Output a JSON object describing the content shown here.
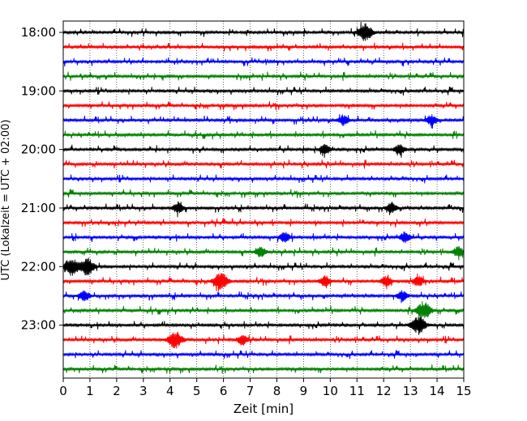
{
  "chart_data": {
    "type": "line",
    "title": "",
    "xlabel": "Zeit  [min]",
    "ylabel": "UTC (Lokalzeit = UTC + 02:00)",
    "xlim": [
      0,
      15
    ],
    "x_ticks": [
      "0",
      "1",
      "2",
      "3",
      "4",
      "5",
      "6",
      "7",
      "8",
      "9",
      "10",
      "11",
      "12",
      "13",
      "14",
      "15"
    ],
    "y_tick_labels": [
      "18:00",
      "19:00",
      "20:00",
      "21:00",
      "22:00",
      "23:00"
    ],
    "grid": "vertical dotted",
    "trace_colors": [
      "#000000",
      "#ff0000",
      "#0000ff",
      "#008000"
    ],
    "traces": [
      {
        "time": "18:00",
        "color": "#000000",
        "events": [
          [
            11.3,
            0.8,
            "high"
          ]
        ]
      },
      {
        "time": "18:15",
        "color": "#ff0000",
        "events": []
      },
      {
        "time": "18:30",
        "color": "#0000ff",
        "events": []
      },
      {
        "time": "18:45",
        "color": "#008000",
        "events": []
      },
      {
        "time": "19:00",
        "color": "#000000",
        "events": []
      },
      {
        "time": "19:15",
        "color": "#ff0000",
        "events": []
      },
      {
        "time": "19:30",
        "color": "#0000ff",
        "events": [
          [
            10.5,
            0.6,
            "medium"
          ],
          [
            13.8,
            0.6,
            "medium"
          ]
        ]
      },
      {
        "time": "19:45",
        "color": "#008000",
        "events": []
      },
      {
        "time": "20:00",
        "color": "#000000",
        "events": [
          [
            9.8,
            0.5,
            "medium"
          ],
          [
            12.6,
            0.5,
            "medium"
          ]
        ]
      },
      {
        "time": "20:15",
        "color": "#ff0000",
        "events": []
      },
      {
        "time": "20:30",
        "color": "#0000ff",
        "events": []
      },
      {
        "time": "20:45",
        "color": "#008000",
        "events": []
      },
      {
        "time": "21:00",
        "color": "#000000",
        "events": [
          [
            4.3,
            0.5,
            "medium"
          ],
          [
            12.3,
            0.5,
            "medium"
          ]
        ]
      },
      {
        "time": "21:15",
        "color": "#ff0000",
        "events": []
      },
      {
        "time": "21:30",
        "color": "#0000ff",
        "events": [
          [
            8.3,
            0.5,
            "medium"
          ],
          [
            12.8,
            0.5,
            "medium"
          ]
        ]
      },
      {
        "time": "21:45",
        "color": "#008000",
        "events": [
          [
            7.4,
            0.6,
            "medium"
          ],
          [
            14.8,
            0.6,
            "medium"
          ]
        ]
      },
      {
        "time": "22:00",
        "color": "#000000",
        "events": [
          [
            0.3,
            1.0,
            "high"
          ],
          [
            0.9,
            0.8,
            "high"
          ]
        ]
      },
      {
        "time": "22:15",
        "color": "#ff0000",
        "events": [
          [
            5.9,
            0.7,
            "high"
          ],
          [
            9.8,
            0.6,
            "medium"
          ],
          [
            12.1,
            0.6,
            "medium"
          ],
          [
            13.3,
            0.6,
            "medium"
          ]
        ]
      },
      {
        "time": "22:30",
        "color": "#0000ff",
        "events": [
          [
            0.8,
            0.6,
            "medium"
          ],
          [
            12.7,
            0.5,
            "medium"
          ]
        ]
      },
      {
        "time": "22:45",
        "color": "#008000",
        "events": [
          [
            13.5,
            0.8,
            "high"
          ]
        ]
      },
      {
        "time": "23:00",
        "color": "#000000",
        "events": [
          [
            13.3,
            0.9,
            "high"
          ]
        ]
      },
      {
        "time": "23:15",
        "color": "#ff0000",
        "events": [
          [
            4.2,
            0.8,
            "high"
          ],
          [
            6.7,
            0.6,
            "medium"
          ]
        ]
      },
      {
        "time": "23:30",
        "color": "#0000ff",
        "events": []
      },
      {
        "time": "23:45",
        "color": "#008000",
        "events": []
      }
    ]
  }
}
